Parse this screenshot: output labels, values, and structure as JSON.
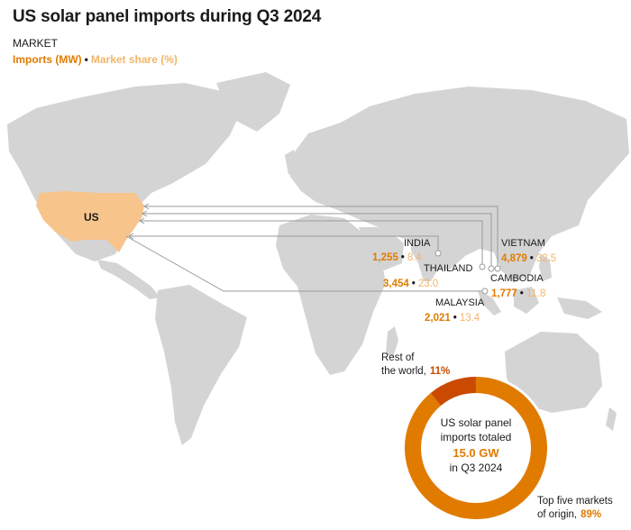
{
  "title": "US solar panel imports during Q3 2024",
  "subtitle": "MARKET",
  "legend": {
    "imports_label": "Imports (MW)",
    "separator": "•",
    "share_label": "Market share (%)"
  },
  "colors": {
    "land": "#d4d4d4",
    "us_fill": "#f7c48c",
    "imports": "#e07b00",
    "share": "#f2b56b",
    "rest": "#c94a00",
    "connector": "#9a9a9a"
  },
  "us_label": "US",
  "markets": [
    {
      "name": "INDIA",
      "imports": "1,255",
      "share": "8.4"
    },
    {
      "name": "THAILAND",
      "imports": "3,454",
      "share": "23.0"
    },
    {
      "name": "MALAYSIA",
      "imports": "2,021",
      "share": "13.4"
    },
    {
      "name": "VIETNAM",
      "imports": "4,879",
      "share": "32.5"
    },
    {
      "name": "CAMBODIA",
      "imports": "1,777",
      "share": "11.8"
    }
  ],
  "donut": {
    "center_line1": "US solar panel",
    "center_line2": "imports totaled",
    "center_value": "15.0 GW",
    "center_line4": "in Q3 2024",
    "rest_line1": "Rest of",
    "rest_line2": "the world,",
    "rest_pct": "11%",
    "rest_fraction": 0.11,
    "top_line1": "Top five markets",
    "top_line2": "of origin,",
    "top_pct": "89%",
    "top_fraction": 0.89
  }
}
